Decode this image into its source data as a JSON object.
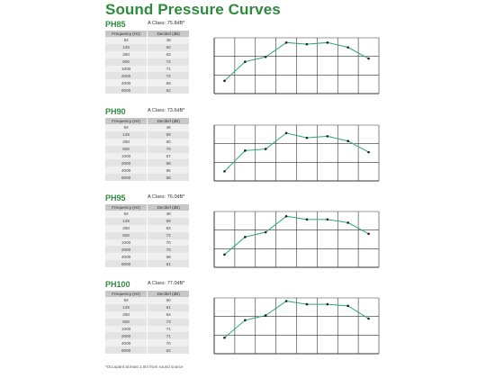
{
  "title": "Sound Pressure Curves",
  "table_headers": [
    "Frequency (Hz)",
    "Decibel (dB)"
  ],
  "footnote": "*Occupant at least 1.0m from sound source",
  "chart_style": {
    "line_color": "#2aa876",
    "point_color": "#222222",
    "grid_color": "#333333"
  },
  "chart_data": [
    {
      "type": "line",
      "model": "PH85",
      "a_class": "A Class: 75.8dB*",
      "x": [
        "64",
        "125",
        "250",
        "500",
        "1000",
        "2000",
        "4000",
        "8000"
      ],
      "series": [
        {
          "values": [
            48,
            60,
            63,
            72,
            71,
            72,
            69,
            62
          ]
        }
      ],
      "ylim": [
        40,
        75
      ],
      "grid": true
    },
    {
      "type": "line",
      "model": "PH90",
      "a_class": "A Class: 73.6dB*",
      "x": [
        "64",
        "125",
        "250",
        "500",
        "1000",
        "2000",
        "4000",
        "8000"
      ],
      "series": [
        {
          "values": [
            46,
            59,
            60,
            70,
            67,
            68,
            65,
            58
          ]
        }
      ],
      "ylim": [
        40,
        75
      ],
      "grid": true
    },
    {
      "type": "line",
      "model": "PH95",
      "a_class": "A Class: 76.0dB*",
      "x": [
        "64",
        "125",
        "250",
        "500",
        "1000",
        "2000",
        "4000",
        "8000"
      ],
      "series": [
        {
          "values": [
            48,
            59,
            62,
            72,
            70,
            70,
            68,
            61
          ]
        }
      ],
      "ylim": [
        40,
        75
      ],
      "grid": true
    },
    {
      "type": "line",
      "model": "PH100",
      "a_class": "A Class: 77.0dB*",
      "x": [
        "64",
        "125",
        "250",
        "500",
        "1000",
        "2000",
        "4000",
        "8000"
      ],
      "series": [
        {
          "values": [
            50,
            61,
            64,
            73,
            71,
            71,
            70,
            62
          ]
        }
      ],
      "ylim": [
        40,
        75
      ],
      "grid": true
    }
  ]
}
